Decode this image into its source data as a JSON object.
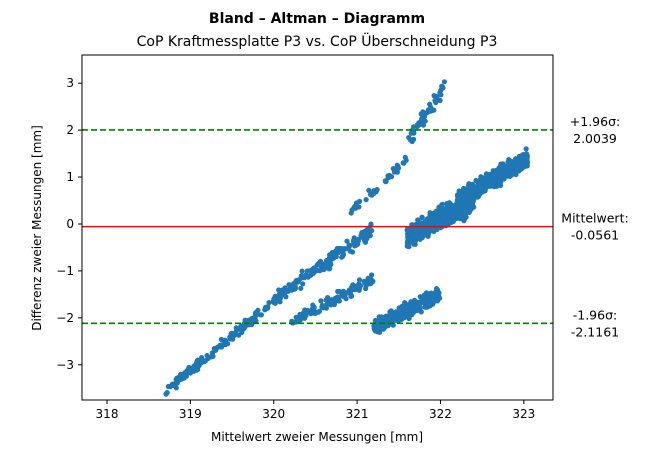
{
  "chart_data": {
    "type": "scatter",
    "title": "Bland – Altman – Diagramm",
    "subtitle": "CoP Kraftmessplatte P3 vs. CoP Überschneidung P3",
    "xlabel": "Mittelwert zweier Messungen [mm]",
    "ylabel": "Differenz zweier Messungen [mm]",
    "xlim": [
      317.7,
      323.35
    ],
    "ylim": [
      -3.75,
      3.6
    ],
    "xticks": [
      "318",
      "319",
      "320",
      "321",
      "322",
      "323"
    ],
    "yticks": [
      "−3",
      "−2",
      "−1",
      "0",
      "1",
      "2",
      "3"
    ],
    "grid": false,
    "point_color": "#1f77b4",
    "reference_lines": [
      {
        "name": "mean",
        "y": -0.0561,
        "color": "#ff0000",
        "style": "solid",
        "label_line1": "Mittelwert:",
        "label_line2": "-0.0561"
      },
      {
        "name": "upper-loa",
        "y": 2.0039,
        "color": "#008000",
        "style": "dashed",
        "label_line1": "+1.96σ:",
        "label_line2": "2.0039"
      },
      {
        "name": "lower-loa",
        "y": -2.1161,
        "color": "#008000",
        "style": "dashed",
        "label_line1": "-1.96σ:",
        "label_line2": "-2.1161"
      }
    ],
    "clusters": [
      {
        "x_start": 318.7,
        "x_end": 320.05,
        "slope": 1.48,
        "intercept": -475.25,
        "noise": 0.12,
        "count": 160
      },
      {
        "x_start": 320.05,
        "x_end": 321.2,
        "slope": 1.25,
        "intercept": -401.6,
        "noise": 0.18,
        "count": 150
      },
      {
        "x_start": 320.9,
        "x_end": 321.6,
        "slope": 1.6,
        "intercept": -513.2,
        "noise": 0.12,
        "count": 40
      },
      {
        "x_start": 321.6,
        "x_end": 322.05,
        "slope": 2.6,
        "intercept": -834.4,
        "noise": 0.18,
        "count": 50
      },
      {
        "x_start": 320.2,
        "x_end": 321.2,
        "slope": 0.95,
        "intercept": -306.3,
        "noise": 0.14,
        "count": 120
      },
      {
        "x_start": 321.2,
        "x_end": 322.0,
        "slope": 0.9,
        "intercept": -291.3,
        "noise": 0.2,
        "count": 300
      },
      {
        "x_start": 321.6,
        "x_end": 322.4,
        "slope": 0.95,
        "intercept": -305.8,
        "noise": 0.28,
        "count": 550
      },
      {
        "x_start": 322.2,
        "x_end": 323.05,
        "slope": 1.05,
        "intercept": -337.8,
        "noise": 0.22,
        "count": 420
      }
    ]
  }
}
